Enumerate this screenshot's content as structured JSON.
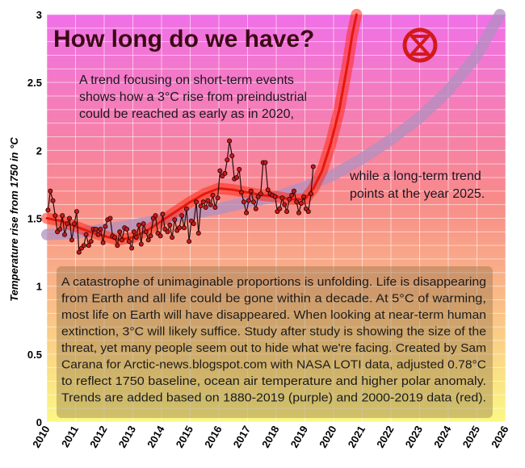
{
  "chart_data": {
    "type": "line",
    "title": "How long do we have?",
    "ylabel": "Temperature rise from 1750 in °C",
    "xlabel": "",
    "xlim": [
      2010,
      2026
    ],
    "ylim": [
      0,
      3
    ],
    "x_ticks": [
      "2010",
      "2011",
      "2012",
      "2013",
      "2014",
      "2015",
      "2016",
      "2017",
      "2018",
      "2019",
      "2020",
      "2021",
      "2022",
      "2023",
      "2024",
      "2025",
      "2026"
    ],
    "y_ticks": [
      "0",
      "0.5",
      "1",
      "1.5",
      "2",
      "2.5",
      "3"
    ],
    "grid": true,
    "annotations": {
      "short_term": [
        "A trend focusing on short-term events",
        "shows how a 3°C rise from preindustrial",
        "could be reached as early as in 2020,"
      ],
      "long_term": [
        "while a long-term trend",
        "points at the year 2025."
      ],
      "box": [
        "A catastrophe of unimaginable proportions is unfolding. Life is disappearing",
        "from Earth and all life could be gone within a decade. At 5°C of warming,",
        "most life on Earth will have disappeared. When looking at near-term human",
        "extinction, 3°C will likely suffice. Study after study is showing the size of the",
        "threat, yet many people seem out to hide what we're facing. Created by Sam",
        "Carana for Arctic-news.blogspot.com with NASA LOTI data, adjusted 0.78°C",
        "to reflect 1750 baseline, ocean air temperature and higher polar anomaly.",
        "Trends are added based on 1880-2019 (purple) and 2000-2019 data (red)."
      ]
    },
    "colors": {
      "bg_top": "#f070e8",
      "bg_mid": "#f88a8a",
      "bg_bottom": "#fbf884",
      "data_line": "#2b0a0a",
      "data_point": "#c81818",
      "red_trend": "#ff2a18",
      "purple_trend": "#b090c0",
      "logo": "#d21a1a"
    },
    "series": [
      {
        "kind": "monthly",
        "x": [
          2010.04,
          2010.12,
          2010.21,
          2010.29,
          2010.37,
          2010.46,
          2010.54,
          2010.62,
          2010.71,
          2010.79,
          2010.87,
          2010.96,
          2011.04,
          2011.12,
          2011.21,
          2011.29,
          2011.37,
          2011.46,
          2011.54,
          2011.62,
          2011.71,
          2011.79,
          2011.87,
          2011.96,
          2012.04,
          2012.12,
          2012.21,
          2012.29,
          2012.37,
          2012.46,
          2012.54,
          2012.62,
          2012.71,
          2012.79,
          2012.87,
          2012.96,
          2013.04,
          2013.12,
          2013.21,
          2013.29,
          2013.37,
          2013.46,
          2013.54,
          2013.62,
          2013.71,
          2013.79,
          2013.87,
          2013.96,
          2014.04,
          2014.12,
          2014.21,
          2014.29,
          2014.37,
          2014.46,
          2014.54,
          2014.62,
          2014.71,
          2014.79,
          2014.87,
          2014.96,
          2015.04,
          2015.12,
          2015.21,
          2015.29,
          2015.37,
          2015.46,
          2015.54,
          2015.62,
          2015.71,
          2015.79,
          2015.87,
          2015.96,
          2016.04,
          2016.12,
          2016.21,
          2016.29,
          2016.37,
          2016.46,
          2016.54,
          2016.62,
          2016.71,
          2016.79,
          2016.87,
          2016.96,
          2017.04,
          2017.12,
          2017.21,
          2017.29,
          2017.37,
          2017.46,
          2017.54,
          2017.62,
          2017.71,
          2017.79,
          2017.87,
          2017.96,
          2018.04,
          2018.12,
          2018.21,
          2018.29,
          2018.37,
          2018.46,
          2018.54,
          2018.62,
          2018.71,
          2018.79,
          2018.87,
          2018.96,
          2019.04,
          2019.12,
          2019.21,
          2019.29
        ],
        "values": [
          1.56,
          1.7,
          1.63,
          1.52,
          1.4,
          1.42,
          1.52,
          1.38,
          1.46,
          1.5,
          1.34,
          1.46,
          1.55,
          1.25,
          1.28,
          1.3,
          1.38,
          1.3,
          1.33,
          1.42,
          1.42,
          1.38,
          1.42,
          1.32,
          1.44,
          1.49,
          1.5,
          1.37,
          1.36,
          1.3,
          1.4,
          1.34,
          1.43,
          1.42,
          1.33,
          1.28,
          1.4,
          1.36,
          1.45,
          1.31,
          1.46,
          1.4,
          1.34,
          1.37,
          1.5,
          1.52,
          1.39,
          1.37,
          1.53,
          1.42,
          1.4,
          1.45,
          1.36,
          1.49,
          1.41,
          1.43,
          1.52,
          1.43,
          1.57,
          1.33,
          1.48,
          1.46,
          1.62,
          1.39,
          1.59,
          1.62,
          1.58,
          1.63,
          1.6,
          1.67,
          1.58,
          1.65,
          1.85,
          1.81,
          1.83,
          1.93,
          2.07,
          1.96,
          1.79,
          1.8,
          1.86,
          1.69,
          1.62,
          1.54,
          1.63,
          1.7,
          1.62,
          1.57,
          1.66,
          1.68,
          1.91,
          1.91,
          1.71,
          1.68,
          1.67,
          1.66,
          1.55,
          1.57,
          1.65,
          1.6,
          1.55,
          1.64,
          1.67,
          1.7,
          1.62,
          1.54,
          1.61,
          1.66,
          1.57,
          1.55,
          1.68,
          1.88
        ]
      },
      {
        "kind": "red-trend",
        "x": [
          2010,
          2010.5,
          2011,
          2011.5,
          2012,
          2012.5,
          2013,
          2013.5,
          2014,
          2014.5,
          2015,
          2015.5,
          2016,
          2016.5,
          2017,
          2017.5,
          2018,
          2018.5,
          2019,
          2019.3,
          2019.6,
          2019.9,
          2020.2,
          2020.5,
          2020.65,
          2020.8
        ],
        "values": [
          1.5,
          1.48,
          1.44,
          1.4,
          1.37,
          1.34,
          1.36,
          1.41,
          1.48,
          1.55,
          1.62,
          1.68,
          1.72,
          1.71,
          1.69,
          1.67,
          1.66,
          1.64,
          1.64,
          1.72,
          1.85,
          2.05,
          2.3,
          2.65,
          2.85,
          3.0
        ]
      },
      {
        "kind": "purple-trend",
        "x": [
          2010,
          2011,
          2012,
          2013,
          2014,
          2015,
          2016,
          2017,
          2018,
          2019,
          2020,
          2021,
          2022,
          2023,
          2024,
          2025,
          2025.8
        ],
        "values": [
          1.38,
          1.39,
          1.42,
          1.45,
          1.49,
          1.53,
          1.57,
          1.62,
          1.66,
          1.73,
          1.82,
          1.94,
          2.08,
          2.24,
          2.44,
          2.7,
          3.0
        ]
      }
    ]
  }
}
